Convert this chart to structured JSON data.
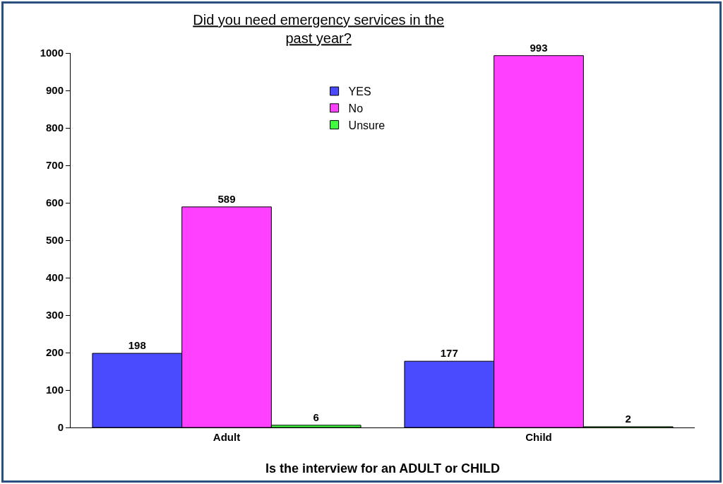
{
  "chart_data": {
    "type": "bar",
    "title": "Did you need emergency services in the\npast year?",
    "xlabel": "Is the interview for an ADULT or CHILD",
    "categories": [
      "Adult",
      "Child"
    ],
    "series": [
      {
        "name": "YES",
        "color": "#4a4aff",
        "values": [
          198,
          177
        ]
      },
      {
        "name": "No",
        "color": "#ff40ff",
        "values": [
          589,
          993
        ]
      },
      {
        "name": "Unsure",
        "color": "#40ff40",
        "values": [
          6,
          2
        ]
      }
    ],
    "ylim": [
      0,
      1000
    ],
    "yticks": [
      0,
      100,
      200,
      300,
      400,
      500,
      600,
      700,
      800,
      900,
      1000
    ],
    "grid": false,
    "legend": "top",
    "data_labels": true
  }
}
